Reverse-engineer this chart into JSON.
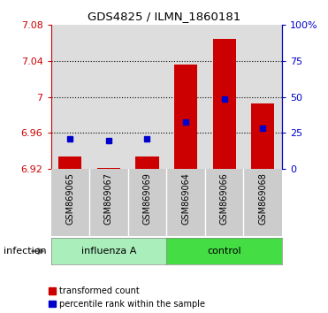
{
  "title": "GDS4825 / ILMN_1860181",
  "samples": [
    "GSM869065",
    "GSM869067",
    "GSM869069",
    "GSM869064",
    "GSM869066",
    "GSM869068"
  ],
  "ylim": [
    6.92,
    7.08
  ],
  "yticks": [
    6.92,
    6.96,
    7.0,
    7.04,
    7.08
  ],
  "ytick_labels": [
    "6.92",
    "6.96",
    "7",
    "7.04",
    "7.08"
  ],
  "right_yticks_pct": [
    0,
    25,
    50,
    75,
    100
  ],
  "right_ytick_labels": [
    "0",
    "25",
    "50",
    "75",
    "100%"
  ],
  "transformed_counts": [
    6.934,
    6.921,
    6.934,
    7.036,
    7.065,
    6.993
  ],
  "bar_bottom": 6.92,
  "percentile_ranks_mapped": [
    6.954,
    6.952,
    6.954,
    6.972,
    6.998,
    6.965
  ],
  "bar_color": "#CC0000",
  "dot_color": "#0000CC",
  "axis_color_left": "#CC0000",
  "axis_color_right": "#0000CC",
  "legend_red_label": "transformed count",
  "legend_blue_label": "percentile rank within the sample",
  "bar_width": 0.6,
  "influenza_color": "#AAEEBB",
  "control_color": "#44DD44",
  "xticklabel_bg": "#CCCCCC"
}
